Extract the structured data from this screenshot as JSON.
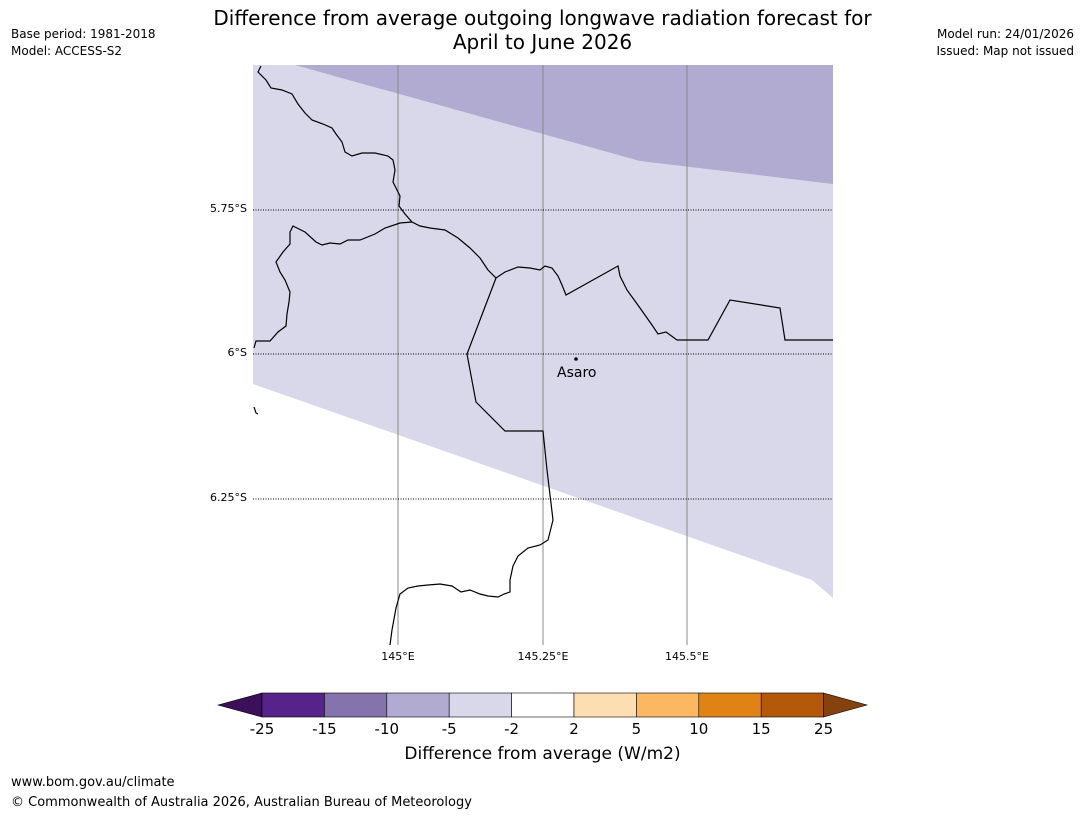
{
  "header": {
    "title_line1": "Difference from average outgoing longwave radiation forecast for",
    "title_line2": "April to June 2026",
    "base_period": "Base period: 1981-2018",
    "model": "Model: ACCESS-S2",
    "model_run": "Model run: 24/01/2026",
    "issued": "Issued: Map not issued"
  },
  "map": {
    "lat_labels": [
      "5.75°S",
      "6°S",
      "6.25°S"
    ],
    "lon_labels": [
      "145°E",
      "145.25°E",
      "145.5°E"
    ],
    "place": {
      "name": "Asaro"
    },
    "fill_categories": {
      "upper_band": "-10 to -5",
      "main_band": "-5 to -2",
      "lower_area": "-2 to 2"
    }
  },
  "colorbar": {
    "title": "Difference from average (W/m2)",
    "ticks": [
      "-25",
      "-15",
      "-10",
      "-5",
      "-2",
      "2",
      "5",
      "10",
      "15",
      "25"
    ],
    "colors": [
      "#3b0f5a",
      "#57238a",
      "#8473ad",
      "#b1aad1",
      "#d8d8ea",
      "#ffffff",
      "#fddeb2",
      "#fbb762",
      "#e08314",
      "#b4590a",
      "#84420e"
    ]
  },
  "footer": {
    "url": "www.bom.gov.au/climate",
    "copyright": "© Commonwealth of Australia 2026, Australian Bureau of Meteorology"
  }
}
